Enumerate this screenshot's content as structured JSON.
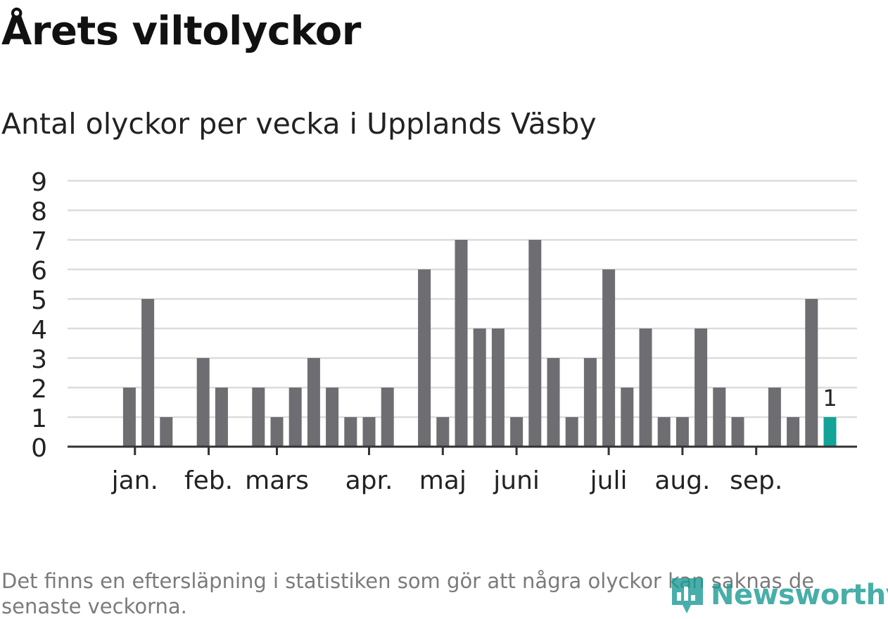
{
  "header": {
    "title": "Årets viltolyckor",
    "subtitle": "Antal olyckor per vecka i Upplands Väsby"
  },
  "footer": {
    "note": "Det finns en eftersläpning i statistiken som gör att några olyckor kan saknas de senaste veckorna.",
    "brand": "Newsworthy",
    "brand_icon": "bar-chart-icon"
  },
  "colors": {
    "bar": "#6e6d72",
    "highlight": "#13a398",
    "grid": "#dcdcdc",
    "axis": "#333333",
    "text": "#222222",
    "brand": "#1a9a93"
  },
  "chart_data": {
    "type": "bar",
    "title": "Antal olyckor per vecka i Upplands Väsby",
    "xlabel": "",
    "ylabel": "",
    "ylim": [
      0,
      9
    ],
    "yticks": [
      0,
      1,
      2,
      3,
      4,
      5,
      6,
      7,
      8,
      9
    ],
    "grid": true,
    "x": [
      1,
      2,
      3,
      4,
      5,
      6,
      7,
      8,
      9,
      10,
      11,
      12,
      13,
      14,
      15,
      16,
      17,
      18,
      19,
      20,
      21,
      22,
      23,
      24,
      25,
      26,
      27,
      28,
      29,
      30,
      31,
      32,
      33,
      34,
      35,
      36,
      37,
      38,
      39,
      40,
      41
    ],
    "values": [
      0,
      0,
      2,
      5,
      1,
      0,
      3,
      2,
      0,
      2,
      1,
      2,
      3,
      2,
      1,
      1,
      2,
      0,
      6,
      1,
      7,
      4,
      4,
      1,
      7,
      3,
      1,
      3,
      6,
      2,
      4,
      1,
      1,
      4,
      2,
      1,
      0,
      2,
      1,
      5,
      1
    ],
    "highlight_index": 40,
    "highlight_label": "1",
    "month_ticks": [
      {
        "label": "jan.",
        "x": 3.3
      },
      {
        "label": "feb.",
        "x": 7.3
      },
      {
        "label": "mars",
        "x": 11.0
      },
      {
        "label": "apr.",
        "x": 16.0
      },
      {
        "label": "maj",
        "x": 20.0
      },
      {
        "label": "juni",
        "x": 24.0
      },
      {
        "label": "juli",
        "x": 29.0
      },
      {
        "label": "aug.",
        "x": 33.0
      },
      {
        "label": "sep.",
        "x": 37.0
      }
    ]
  }
}
